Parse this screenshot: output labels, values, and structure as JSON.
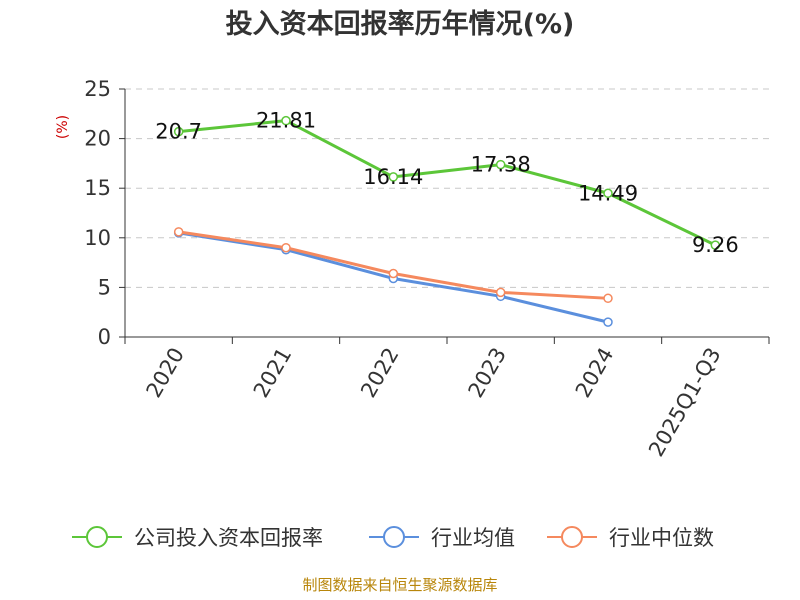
{
  "chart_data": {
    "type": "line",
    "title": "投入资本回报率历年情况(%)",
    "ylabel": "(%)",
    "xlabel": "",
    "ylim": [
      0,
      25
    ],
    "yticks": [
      0,
      5,
      10,
      15,
      20,
      25
    ],
    "categories": [
      "2020",
      "2021",
      "2022",
      "2023",
      "2024",
      "2025Q1-Q3"
    ],
    "grid": true,
    "legend_position": "bottom",
    "series": [
      {
        "name": "公司投入资本回报率",
        "color": "#5cc639",
        "values": [
          20.7,
          21.81,
          16.14,
          17.38,
          14.49,
          9.26
        ],
        "labels": [
          "20.7",
          "21.81",
          "16.14",
          "17.38",
          "14.49",
          "9.26"
        ]
      },
      {
        "name": "行业均值",
        "color": "#5b8fdd",
        "values": [
          10.5,
          8.8,
          5.9,
          4.1,
          1.5,
          null
        ]
      },
      {
        "name": "行业中位数",
        "color": "#f5895e",
        "values": [
          10.6,
          9.0,
          6.4,
          4.5,
          3.9,
          null
        ]
      }
    ],
    "source": "制图数据来自恒生聚源数据库"
  }
}
